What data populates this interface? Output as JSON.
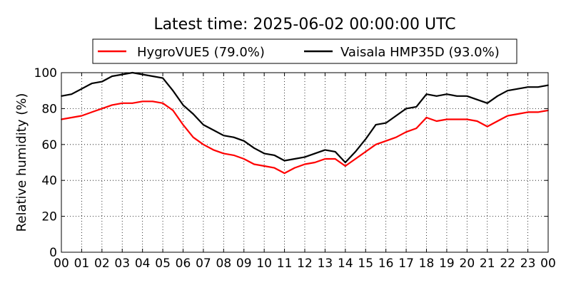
{
  "chart_data": {
    "type": "line",
    "title": "Latest time: 2025-06-02 00:00:00 UTC",
    "xlabel": "",
    "ylabel": "Relative humidity (%)",
    "xlim": [
      0,
      24
    ],
    "ylim": [
      0,
      100
    ],
    "x_tick_labels": [
      "00",
      "01",
      "02",
      "03",
      "04",
      "05",
      "06",
      "07",
      "08",
      "09",
      "10",
      "11",
      "12",
      "13",
      "14",
      "15",
      "16",
      "17",
      "18",
      "19",
      "20",
      "21",
      "22",
      "23",
      "00"
    ],
    "y_ticks": [
      0,
      20,
      40,
      60,
      80,
      100
    ],
    "grid": true,
    "legend_position": "top",
    "x": [
      0,
      0.5,
      1,
      1.5,
      2,
      2.5,
      3,
      3.5,
      4,
      4.5,
      5,
      5.5,
      6,
      6.5,
      7,
      7.5,
      8,
      8.5,
      9,
      9.5,
      10,
      10.5,
      11,
      11.5,
      12,
      12.5,
      13,
      13.5,
      14,
      14.5,
      15,
      15.5,
      16,
      16.5,
      17,
      17.5,
      18,
      18.5,
      19,
      19.5,
      20,
      20.5,
      21,
      21.5,
      22,
      22.5,
      23,
      23.5,
      24
    ],
    "series": [
      {
        "name": "HygroVUE5 (79.0%)",
        "color": "#ff0000",
        "values": [
          74,
          75,
          76,
          78,
          80,
          82,
          83,
          83,
          84,
          84,
          83,
          79,
          71,
          64,
          60,
          57,
          55,
          54,
          52,
          49,
          48,
          47,
          44,
          47,
          49,
          50,
          52,
          52,
          48,
          52,
          56,
          60,
          62,
          64,
          67,
          69,
          75,
          73,
          74,
          74,
          74,
          73,
          70,
          73,
          76,
          77,
          78,
          78,
          79
        ]
      },
      {
        "name": "Vaisala HMP35D (93.0%)",
        "color": "#000000",
        "values": [
          87,
          88,
          91,
          94,
          95,
          98,
          99,
          100,
          99,
          98,
          97,
          90,
          82,
          77,
          71,
          68,
          65,
          64,
          62,
          58,
          55,
          54,
          51,
          52,
          53,
          55,
          57,
          56,
          50,
          56,
          63,
          71,
          72,
          76,
          80,
          81,
          88,
          87,
          88,
          87,
          87,
          85,
          83,
          87,
          90,
          91,
          92,
          92,
          93
        ]
      }
    ]
  }
}
